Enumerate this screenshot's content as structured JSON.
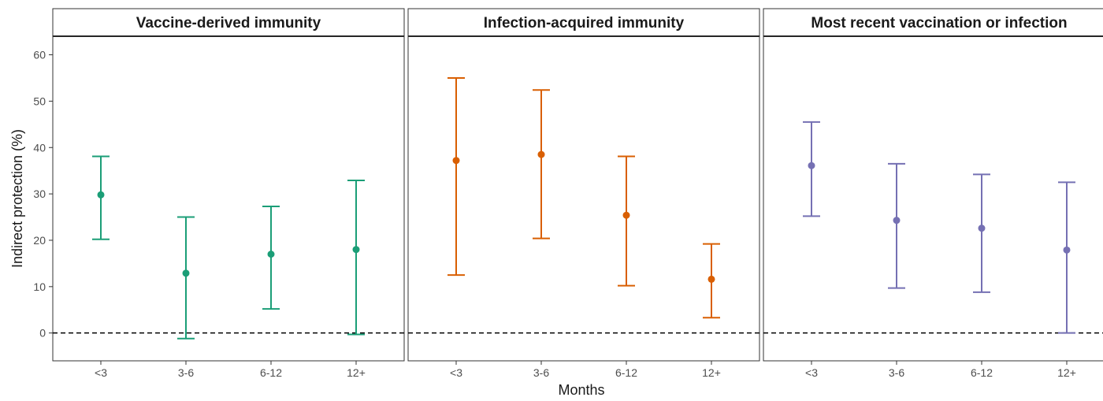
{
  "chart_data": {
    "type": "scatter",
    "subtype": "point-with-error-bars, faceted",
    "xlabel": "Months",
    "ylabel": "Indirect protection (%)",
    "categories": [
      "<3",
      "3-6",
      "6-12",
      "12+"
    ],
    "ylim": [
      -6,
      64
    ],
    "yticks": [
      0,
      10,
      20,
      30,
      40,
      50,
      60
    ],
    "reference_line": {
      "y": 0,
      "style": "dashed"
    },
    "grid": false,
    "panels": [
      {
        "title": "Vaccine-derived immunity",
        "color": "#1b9e77",
        "estimates": [
          29.8,
          12.9,
          17.0,
          18.0
        ],
        "lower": [
          20.2,
          -1.2,
          5.2,
          -0.3
        ],
        "upper": [
          38.1,
          25.0,
          27.3,
          32.9
        ]
      },
      {
        "title": "Infection-acquired immunity",
        "color": "#d95f02",
        "estimates": [
          37.2,
          38.5,
          25.4,
          11.6
        ],
        "lower": [
          12.5,
          20.4,
          10.2,
          3.3
        ],
        "upper": [
          55.0,
          52.4,
          38.1,
          19.2
        ]
      },
      {
        "title": "Most recent vaccination or infection",
        "color": "#7570b3",
        "estimates": [
          36.1,
          24.3,
          22.6,
          17.9
        ],
        "lower": [
          25.2,
          9.7,
          8.8,
          0.0
        ],
        "upper": [
          45.5,
          36.5,
          34.2,
          32.5
        ]
      }
    ]
  }
}
